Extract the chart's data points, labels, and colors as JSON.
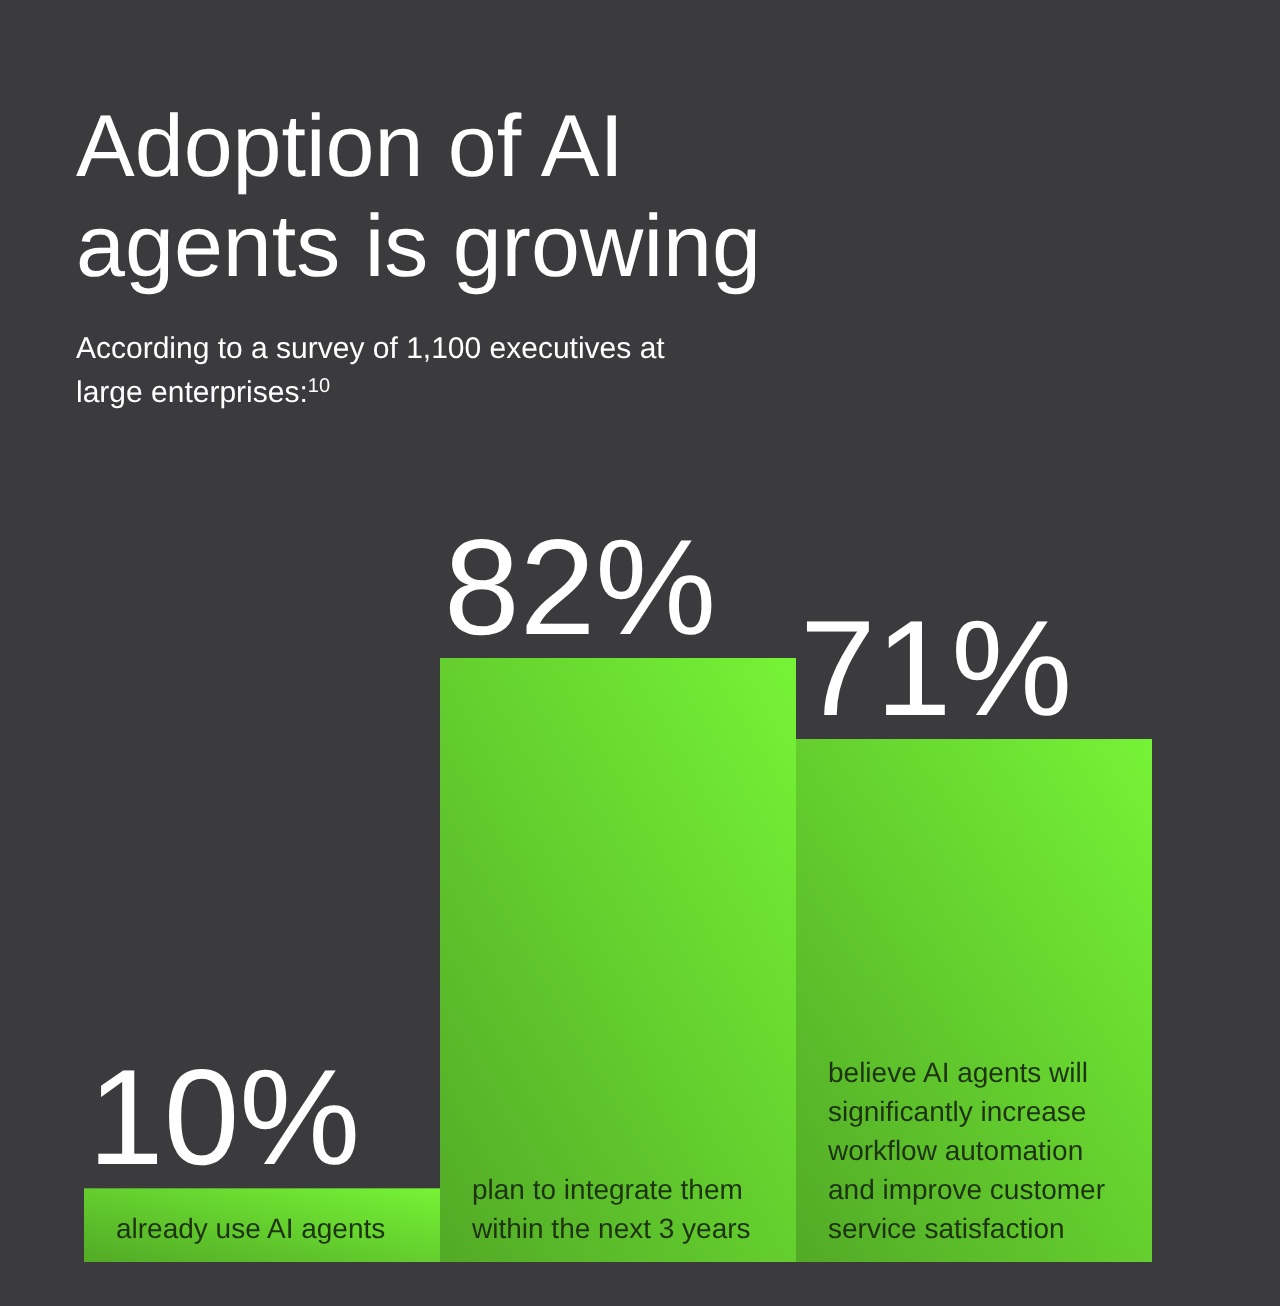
{
  "chart_data": {
    "type": "bar",
    "title": "Adoption of AI agents is growing",
    "subtitle": "According to a survey of 1,100 executives at large enterprises:$^{10}$",
    "categories": [
      "already use AI agents",
      "plan to integrate them within the next 3 years",
      "believe AI agents will significantly increase workflow automation and improve customer service satisfaction"
    ],
    "values": [
      10,
      82,
      71
    ],
    "value_labels": [
      "10%",
      "82%",
      "71%"
    ],
    "color": "#5fc42c",
    "relative": false
  }
}
